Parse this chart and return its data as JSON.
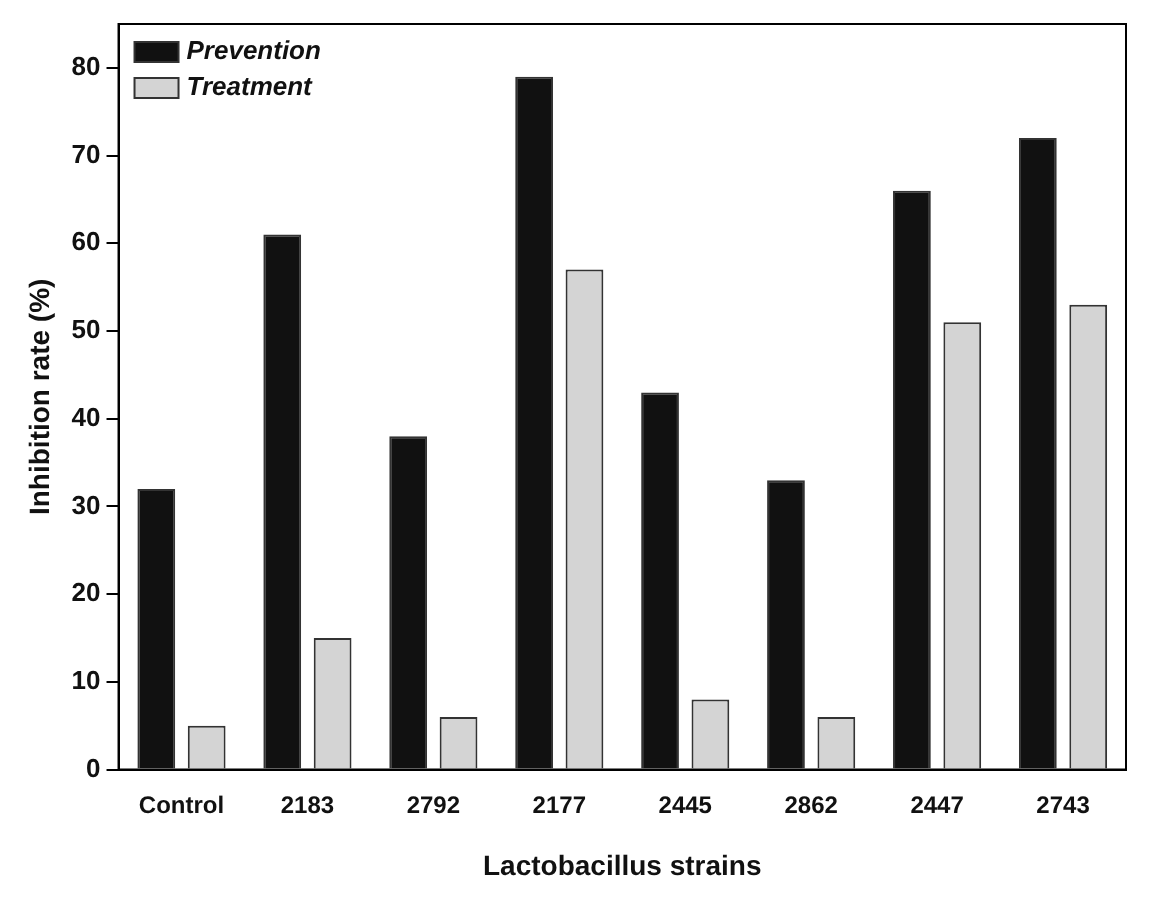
{
  "chart_data": {
    "type": "bar",
    "xlabel": "Lactobacillus strains",
    "ylabel": "Inhibition rate (%)",
    "categories": [
      "Control",
      "2183",
      "2792",
      "2177",
      "2445",
      "2862",
      "2447",
      "2743"
    ],
    "series": [
      {
        "name": "Prevention",
        "color": "#111111",
        "values": [
          32,
          61,
          38,
          79,
          43,
          33,
          66,
          72
        ]
      },
      {
        "name": "Treatment",
        "color": "#d4d4d4",
        "values": [
          5,
          15,
          6,
          57,
          8,
          6,
          51,
          53
        ]
      }
    ],
    "ylim": [
      0,
      85
    ],
    "yticks": [
      0,
      10,
      20,
      30,
      40,
      50,
      60,
      70,
      80
    ],
    "grid": false,
    "legend": "top left"
  }
}
